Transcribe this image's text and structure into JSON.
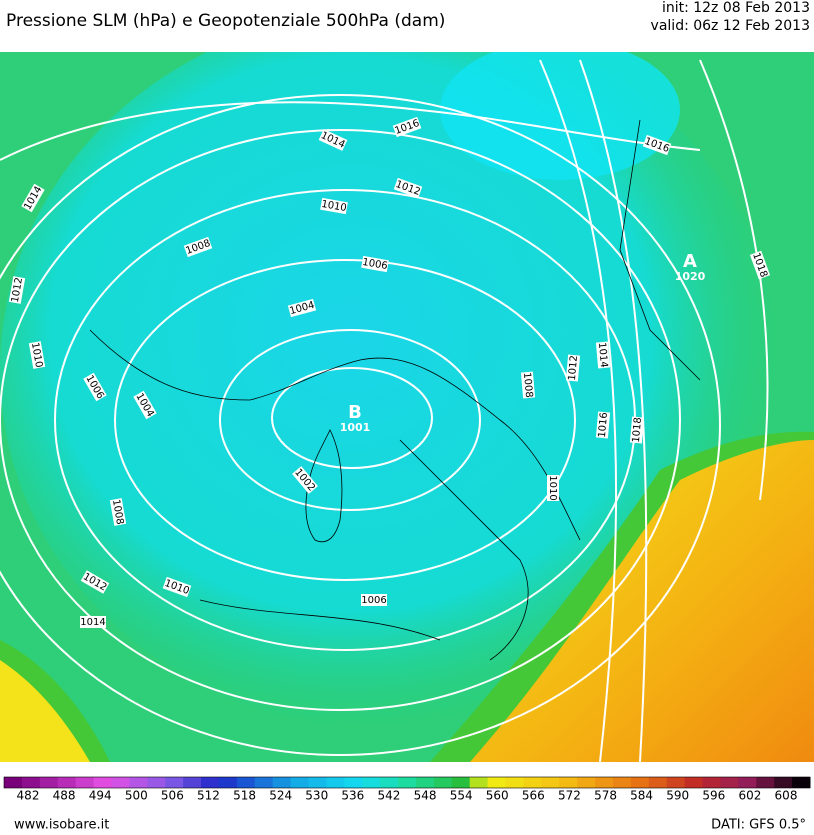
{
  "header": {
    "title": "Pressione SLM (hPa) e Geopotenziale 500hPa (dam)",
    "init": "init: 12z 08 Feb 2013",
    "valid": "valid: 06z 12 Feb 2013"
  },
  "isobar_labels": [
    "1016",
    "1016",
    "1014",
    "1012",
    "1010",
    "1014",
    "1008",
    "1006",
    "1018",
    "1012",
    "1004",
    "1010",
    "1006",
    "1004",
    "1008",
    "1012",
    "1014",
    "1016",
    "1018",
    "1002",
    "1010",
    "1008",
    "1012",
    "1010",
    "1006",
    "1014"
  ],
  "centers": [
    {
      "letter": "A",
      "value": "1020"
    },
    {
      "letter": "B",
      "value": "1001"
    }
  ],
  "colorbar": {
    "ticks": [
      482,
      488,
      494,
      500,
      506,
      512,
      518,
      524,
      530,
      536,
      542,
      548,
      554,
      560,
      566,
      572,
      578,
      584,
      590,
      596,
      602,
      608
    ]
  },
  "footer": {
    "site": "www.isobare.it",
    "source": "DATI: GFS 0.5°"
  }
}
